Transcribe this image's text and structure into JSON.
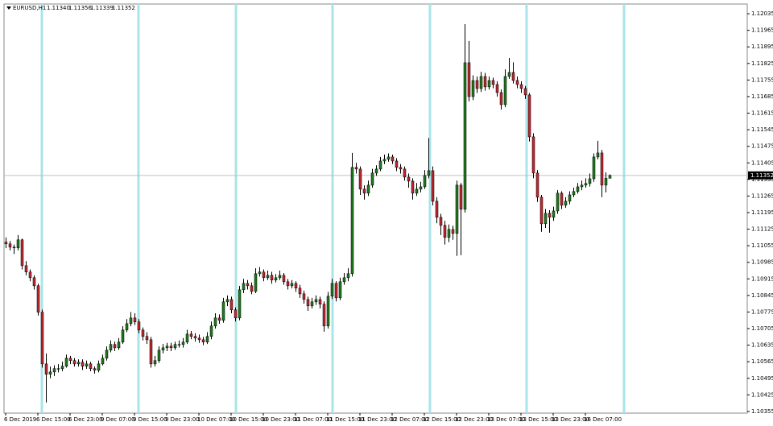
{
  "chart_data": {
    "type": "candlestick",
    "symbol": "EURUSD,H1",
    "header_ohlc": [
      {
        "value": 1.1134,
        "label": "1.11340"
      },
      1.11356,
      1.11339,
      1.11352
    ],
    "up_color": "#1e7b1e",
    "down_color": "#c0272d",
    "last_price": 1.11352,
    "ylim": [
      1.10348,
      1.12076
    ],
    "yticks": [
      1.12035,
      1.11965,
      1.11895,
      1.11825,
      1.11755,
      1.11685,
      1.11615,
      1.11545,
      1.11475,
      1.11405,
      1.11335,
      1.11265,
      1.11195,
      1.11125,
      1.11055,
      1.10985,
      1.10915,
      1.10845,
      1.10775,
      1.10705,
      1.10635,
      1.10565,
      1.10495,
      1.10425,
      1.10355
    ],
    "xticks": [
      {
        "value": 0,
        "label": "6 Dec 2019"
      },
      {
        "value": 8,
        "label": "6 Dec 15:00"
      },
      {
        "value": 16,
        "label": "6 Dec 23:00"
      },
      {
        "value": 24,
        "label": "9 Dec 07:00"
      },
      {
        "value": 32,
        "label": "9 Dec 15:00"
      },
      {
        "value": 40,
        "label": "9 Dec 23:00"
      },
      {
        "value": 48,
        "label": "10 Dec 07:00"
      },
      {
        "value": 56,
        "label": "10 Dec 15:00"
      },
      {
        "value": 64,
        "label": "10 Dec 23:00"
      },
      {
        "value": 72,
        "label": "11 Dec 07:00"
      },
      {
        "value": 80,
        "label": "11 Dec 15:00"
      },
      {
        "value": 88,
        "label": "11 Dec 23:00"
      },
      {
        "value": 96,
        "label": "12 Dec 07:00"
      },
      {
        "value": 104,
        "label": "12 Dec 15:00"
      },
      {
        "value": 112,
        "label": "12 Dec 23:00"
      },
      {
        "value": 120,
        "label": "13 Dec 07:00"
      },
      {
        "value": 128,
        "label": "13 Dec 15:00"
      },
      {
        "value": 136,
        "label": "13 Dec 23:00"
      },
      {
        "value": 144,
        "label": "16 Dec 07:00"
      }
    ],
    "open": [
      1.1107,
      1.11063,
      1.11049,
      1.11046,
      1.1108,
      1.10971,
      1.10944,
      1.1092,
      1.10886,
      1.10774,
      1.10556,
      1.10512,
      1.10522,
      1.10536,
      1.10536,
      1.10546,
      1.1058,
      1.1057,
      1.10556,
      1.10563,
      1.10546,
      1.10556,
      1.10536,
      1.10529,
      1.10556,
      1.1058,
      1.10614,
      1.10638,
      1.10624,
      1.10648,
      1.10699,
      1.10726,
      1.1075,
      1.10733,
      1.10699,
      1.10672,
      1.10658,
      1.10556,
      1.1057,
      1.10614,
      1.10624,
      1.10631,
      1.10624,
      1.10638,
      1.10638,
      1.10648,
      1.10682,
      1.10672,
      1.10665,
      1.10658,
      1.10648,
      1.10672,
      1.10716,
      1.1075,
      1.1074,
      1.10818,
      1.10828,
      1.10784,
      1.1075,
      1.10869,
      1.10896,
      1.10886,
      1.10862,
      1.10937,
      1.10944,
      1.1092,
      1.1093,
      1.1091,
      1.1092,
      1.1093,
      1.10903,
      1.10886,
      1.10896,
      1.10876,
      1.10852,
      1.10828,
      1.10801,
      1.10818,
      1.10828,
      1.10808,
      1.10716,
      1.10842,
      1.10896,
      1.10835,
      1.10903,
      1.1092,
      1.10937,
      1.11386,
      1.11379,
      1.11294,
      1.11277,
      1.11311,
      1.11362,
      1.11379,
      1.11413,
      1.1142,
      1.1143,
      1.11413,
      1.11386,
      1.11379,
      1.11345,
      1.11328,
      1.11277,
      1.11294,
      1.11304,
      1.11352,
      1.11372,
      1.11243,
      1.11175,
      1.11141,
      1.1109,
      1.11124,
      1.11107,
      1.11311,
      1.11209,
      1.11828,
      1.11685,
      1.11753,
      1.11719,
      1.1177,
      1.11726,
      1.11753,
      1.11736,
      1.11702,
      1.11651,
      1.1177,
      1.11787,
      1.11753,
      1.11736,
      1.11719,
      1.11692,
      1.11515,
      1.11362,
      1.1126,
      1.11148,
      1.11192,
      1.11175,
      1.11202,
      1.11277,
      1.11226,
      1.11243,
      1.1127,
      1.11284,
      1.11304,
      1.11311,
      1.11318,
      1.11338,
      1.1143,
      1.11447,
      1.11311,
      1.1134
    ],
    "high": [
      1.1109,
      1.11075,
      1.1106,
      1.111,
      1.11085,
      1.1099,
      1.10955,
      1.1093,
      1.10895,
      1.10785,
      1.106,
      1.10545,
      1.1055,
      1.10555,
      1.10565,
      1.10595,
      1.1059,
      1.1058,
      1.10575,
      1.10575,
      1.1057,
      1.10565,
      1.10545,
      1.1057,
      1.10595,
      1.1063,
      1.10655,
      1.1065,
      1.10665,
      1.10715,
      1.10745,
      1.10775,
      1.1077,
      1.10745,
      1.1071,
      1.1069,
      1.1067,
      1.1059,
      1.1063,
      1.1064,
      1.10645,
      1.10645,
      1.1065,
      1.10655,
      1.10665,
      1.107,
      1.10695,
      1.10685,
      1.1068,
      1.1067,
      1.1069,
      1.10735,
      1.1077,
      1.10765,
      1.10835,
      1.10845,
      1.1084,
      1.10795,
      1.10885,
      1.10915,
      1.1091,
      1.109,
      1.1096,
      1.10965,
      1.10955,
      1.1095,
      1.10945,
      1.10935,
      1.1095,
      1.1094,
      1.10915,
      1.1091,
      1.10905,
      1.1089,
      1.10865,
      1.1084,
      1.10835,
      1.10845,
      1.1084,
      1.1082,
      1.1086,
      1.10915,
      1.10905,
      1.1092,
      1.1094,
      1.1096,
      1.11447,
      1.11405,
      1.1139,
      1.1131,
      1.1133,
      1.1138,
      1.11395,
      1.1143,
      1.1144,
      1.11445,
      1.1144,
      1.11425,
      1.114,
      1.1139,
      1.1136,
      1.1134,
      1.1132,
      1.11325,
      1.11375,
      1.1151,
      1.1139,
      1.1126,
      1.1119,
      1.1116,
      1.11145,
      1.1114,
      1.1133,
      1.1132,
      1.11991,
      1.1192,
      1.11775,
      1.1177,
      1.1179,
      1.11785,
      1.1177,
      1.11765,
      1.1175,
      1.11715,
      1.118,
      1.11848,
      1.1183,
      1.1177,
      1.1175,
      1.1173,
      1.117,
      1.1153,
      1.11375,
      1.1127,
      1.1121,
      1.11205,
      1.1122,
      1.1129,
      1.11285,
      1.1126,
      1.11285,
      1.113,
      1.1132,
      1.1133,
      1.1134,
      1.1136,
      1.11445,
      1.11498,
      1.1146,
      1.11365,
      1.11356
    ],
    "low": [
      1.11045,
      1.11035,
      1.1102,
      1.11035,
      1.10955,
      1.1093,
      1.10905,
      1.1087,
      1.1076,
      1.1054,
      1.10393,
      1.10495,
      1.10505,
      1.1052,
      1.10525,
      1.1054,
      1.10555,
      1.10545,
      1.10545,
      1.1053,
      1.10535,
      1.10525,
      1.10515,
      1.1052,
      1.1055,
      1.1057,
      1.10605,
      1.1061,
      1.10615,
      1.1064,
      1.1069,
      1.10715,
      1.1072,
      1.10685,
      1.10655,
      1.1064,
      1.1054,
      1.10545,
      1.1056,
      1.106,
      1.1061,
      1.1061,
      1.10615,
      1.10625,
      1.10625,
      1.1064,
      1.1066,
      1.1065,
      1.10645,
      1.10635,
      1.1064,
      1.1066,
      1.10705,
      1.10725,
      1.1073,
      1.108,
      1.1077,
      1.10735,
      1.1074,
      1.10855,
      1.1087,
      1.1085,
      1.10855,
      1.10925,
      1.10905,
      1.1091,
      1.10895,
      1.109,
      1.1091,
      1.1089,
      1.1087,
      1.10875,
      1.1086,
      1.10835,
      1.1081,
      1.1078,
      1.1079,
      1.10805,
      1.1079,
      1.10692,
      1.10705,
      1.1083,
      1.1082,
      1.10825,
      1.1089,
      1.10905,
      1.10925,
      1.1136,
      1.1127,
      1.1125,
      1.11265,
      1.113,
      1.1135,
      1.1137,
      1.114,
      1.1141,
      1.114,
      1.1137,
      1.1136,
      1.1133,
      1.113,
      1.1125,
      1.11265,
      1.1128,
      1.11295,
      1.1134,
      1.11225,
      1.1115,
      1.111,
      1.1106,
      1.1107,
      1.1108,
      1.11012,
      1.11015,
      1.11195,
      1.11665,
      1.1167,
      1.117,
      1.11705,
      1.1171,
      1.11715,
      1.1172,
      1.11685,
      1.1163,
      1.1164,
      1.1176,
      1.1174,
      1.1172,
      1.117,
      1.11675,
      1.11495,
      1.1134,
      1.1124,
      1.11114,
      1.1113,
      1.1111,
      1.1116,
      1.1119,
      1.1121,
      1.11215,
      1.1123,
      1.1126,
      1.11275,
      1.1129,
      1.113,
      1.11305,
      1.11325,
      1.1142,
      1.1126,
      1.1128,
      1.11339
    ],
    "close": [
      1.11063,
      1.11049,
      1.11046,
      1.1108,
      1.10971,
      1.10944,
      1.1092,
      1.10886,
      1.10774,
      1.10556,
      1.10512,
      1.10522,
      1.10536,
      1.10536,
      1.10546,
      1.1058,
      1.1057,
      1.10556,
      1.10563,
      1.10546,
      1.10556,
      1.10536,
      1.10529,
      1.10556,
      1.1058,
      1.10614,
      1.10638,
      1.10624,
      1.10648,
      1.10699,
      1.10726,
      1.1075,
      1.10733,
      1.10699,
      1.10672,
      1.10658,
      1.10556,
      1.1057,
      1.10614,
      1.10624,
      1.10631,
      1.10624,
      1.10638,
      1.10638,
      1.10648,
      1.10682,
      1.10672,
      1.10665,
      1.10658,
      1.10648,
      1.10672,
      1.10716,
      1.1075,
      1.1074,
      1.10818,
      1.10828,
      1.10784,
      1.1075,
      1.10869,
      1.10896,
      1.10886,
      1.10862,
      1.10937,
      1.10944,
      1.1092,
      1.1093,
      1.1091,
      1.1092,
      1.1093,
      1.10903,
      1.10886,
      1.10896,
      1.10876,
      1.10852,
      1.10828,
      1.10801,
      1.10818,
      1.10828,
      1.10808,
      1.10716,
      1.10842,
      1.10896,
      1.10835,
      1.10903,
      1.1092,
      1.10937,
      1.11386,
      1.11379,
      1.11294,
      1.11277,
      1.11311,
      1.11362,
      1.11379,
      1.11413,
      1.1142,
      1.1143,
      1.11413,
      1.11386,
      1.11379,
      1.11345,
      1.11328,
      1.11277,
      1.11294,
      1.11304,
      1.11352,
      1.11372,
      1.11243,
      1.11175,
      1.11141,
      1.1109,
      1.11124,
      1.11107,
      1.11311,
      1.11209,
      1.11828,
      1.11685,
      1.11753,
      1.11719,
      1.1177,
      1.11726,
      1.11753,
      1.11736,
      1.11702,
      1.11651,
      1.1177,
      1.11787,
      1.11753,
      1.11736,
      1.11719,
      1.11692,
      1.11515,
      1.11362,
      1.1126,
      1.11148,
      1.11192,
      1.11175,
      1.11202,
      1.11277,
      1.11226,
      1.11243,
      1.1127,
      1.11284,
      1.11304,
      1.11311,
      1.11318,
      1.11338,
      1.1143,
      1.11447,
      1.11311,
      1.1134,
      1.11352
    ]
  }
}
